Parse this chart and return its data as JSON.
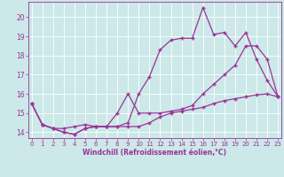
{
  "background_color": "#cce8e8",
  "line_color": "#993399",
  "xlabel": "Windchill (Refroidissement éolien,°C)",
  "xlim_min": 0,
  "xlim_max": 23,
  "ylim_min": 13.7,
  "ylim_max": 20.8,
  "yticks": [
    14,
    15,
    16,
    17,
    18,
    19,
    20
  ],
  "xticks": [
    0,
    1,
    2,
    3,
    4,
    5,
    6,
    7,
    8,
    9,
    10,
    11,
    12,
    13,
    14,
    15,
    16,
    17,
    18,
    19,
    20,
    21,
    22,
    23
  ],
  "line_peak": [
    15.5,
    14.4,
    14.2,
    14.0,
    13.9,
    14.2,
    14.3,
    14.3,
    14.3,
    14.5,
    16.0,
    16.9,
    18.3,
    18.8,
    18.9,
    18.9,
    20.5,
    19.1,
    19.2,
    18.5,
    19.2,
    17.8,
    16.7,
    15.85
  ],
  "line_flat": [
    15.5,
    14.4,
    14.2,
    14.2,
    14.3,
    14.4,
    14.3,
    14.3,
    14.3,
    14.3,
    14.3,
    14.5,
    14.8,
    15.0,
    15.1,
    15.2,
    15.3,
    15.5,
    15.65,
    15.75,
    15.85,
    15.95,
    16.0,
    15.85
  ],
  "line_mid": [
    15.5,
    14.4,
    14.2,
    14.0,
    13.9,
    14.2,
    14.3,
    14.3,
    15.0,
    16.0,
    15.0,
    15.0,
    15.0,
    15.1,
    15.2,
    15.4,
    16.0,
    16.5,
    17.0,
    17.5,
    18.5,
    18.5,
    17.8,
    15.85
  ]
}
